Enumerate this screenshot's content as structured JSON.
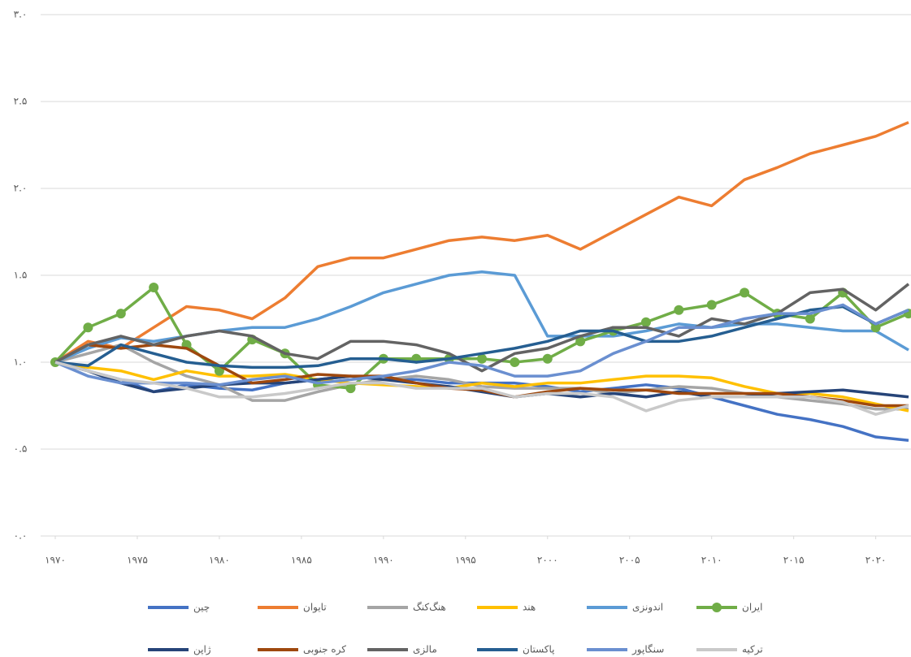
{
  "chart_data": {
    "type": "line",
    "x": [
      1970,
      1972,
      1974,
      1976,
      1978,
      1980,
      1982,
      1984,
      1986,
      1988,
      1990,
      1992,
      1994,
      1996,
      1998,
      2000,
      2002,
      2004,
      2006,
      2008,
      2010,
      2012,
      2014,
      2016,
      2018,
      2020,
      2022
    ],
    "xlim": [
      1970,
      2022
    ],
    "ylim": [
      0,
      3
    ],
    "xticks": [
      {
        "value": 1970,
        "label": "۱۹۷۰"
      },
      {
        "value": 1975,
        "label": "۱۹۷۵"
      },
      {
        "value": 1980,
        "label": "۱۹۸۰"
      },
      {
        "value": 1985,
        "label": "۱۹۸۵"
      },
      {
        "value": 1990,
        "label": "۱۹۹۰"
      },
      {
        "value": 1995,
        "label": "۱۹۹۵"
      },
      {
        "value": 2000,
        "label": "۲۰۰۰"
      },
      {
        "value": 2005,
        "label": "۲۰۰۵"
      },
      {
        "value": 2010,
        "label": "۲۰۱۰"
      },
      {
        "value": 2015,
        "label": "۲۰۱۵"
      },
      {
        "value": 2020,
        "label": "۲۰۲۰"
      }
    ],
    "yticks": [
      {
        "value": 0,
        "label": "۰.۰"
      },
      {
        "value": 0.5,
        "label": "۰.۵"
      },
      {
        "value": 1,
        "label": "۱.۰"
      },
      {
        "value": 1.5,
        "label": "۱.۵"
      },
      {
        "value": 2,
        "label": "۲.۰"
      },
      {
        "value": 2.5,
        "label": "۲.۵"
      },
      {
        "value": 3,
        "label": "۳.۰"
      }
    ],
    "grid": true,
    "legend": "bottom",
    "series": [
      {
        "name": "چین",
        "color": "#4472c4",
        "values": [
          1.0,
          0.95,
          0.9,
          0.83,
          0.87,
          0.85,
          0.84,
          0.88,
          0.9,
          0.92,
          0.9,
          0.9,
          0.88,
          0.88,
          0.88,
          0.86,
          0.83,
          0.85,
          0.87,
          0.85,
          0.8,
          0.75,
          0.7,
          0.67,
          0.63,
          0.57,
          0.55
        ]
      },
      {
        "name": "تایوان",
        "color": "#ed7d31",
        "values": [
          1.0,
          1.12,
          1.08,
          1.2,
          1.32,
          1.3,
          1.25,
          1.37,
          1.55,
          1.6,
          1.6,
          1.65,
          1.7,
          1.72,
          1.7,
          1.73,
          1.65,
          1.75,
          1.85,
          1.95,
          1.9,
          2.05,
          2.12,
          2.2,
          2.25,
          2.3,
          2.38
        ]
      },
      {
        "name": "هنگ‌کنگ",
        "color": "#a5a5a5",
        "values": [
          1.0,
          1.05,
          1.1,
          1.0,
          0.92,
          0.87,
          0.78,
          0.78,
          0.83,
          0.87,
          0.9,
          0.92,
          0.9,
          0.86,
          0.85,
          0.85,
          0.85,
          0.82,
          0.84,
          0.86,
          0.85,
          0.82,
          0.8,
          0.78,
          0.76,
          0.73,
          0.73
        ]
      },
      {
        "name": "هند",
        "color": "#ffc000",
        "values": [
          1.0,
          0.97,
          0.95,
          0.9,
          0.95,
          0.92,
          0.92,
          0.93,
          0.9,
          0.88,
          0.87,
          0.86,
          0.85,
          0.88,
          0.86,
          0.88,
          0.88,
          0.9,
          0.92,
          0.92,
          0.91,
          0.86,
          0.82,
          0.82,
          0.8,
          0.76,
          0.72
        ]
      },
      {
        "name": "اندونزی",
        "color": "#5b9bd5",
        "values": [
          1.0,
          1.08,
          1.14,
          1.12,
          1.15,
          1.18,
          1.2,
          1.2,
          1.25,
          1.32,
          1.4,
          1.45,
          1.5,
          1.52,
          1.5,
          1.15,
          1.15,
          1.15,
          1.18,
          1.22,
          1.2,
          1.22,
          1.22,
          1.2,
          1.18,
          1.18,
          1.07
        ]
      },
      {
        "name": "ایران",
        "color": "#70ad47",
        "marker": "circle",
        "values": [
          1.0,
          1.2,
          1.28,
          1.43,
          1.1,
          0.95,
          1.13,
          1.05,
          0.87,
          0.85,
          1.02,
          1.02,
          1.02,
          1.02,
          1.0,
          1.02,
          1.12,
          1.18,
          1.23,
          1.3,
          1.33,
          1.4,
          1.28,
          1.25,
          1.4,
          1.2,
          1.28
        ]
      },
      {
        "name": "ژاپن",
        "color": "#264478",
        "values": [
          1.0,
          0.95,
          0.88,
          0.83,
          0.85,
          0.87,
          0.88,
          0.88,
          0.9,
          0.92,
          0.9,
          0.88,
          0.86,
          0.83,
          0.8,
          0.82,
          0.8,
          0.82,
          0.8,
          0.83,
          0.8,
          0.8,
          0.82,
          0.83,
          0.84,
          0.82,
          0.8
        ]
      },
      {
        "name": "کره جنوبی",
        "color": "#9e480e",
        "values": [
          1.0,
          1.1,
          1.08,
          1.1,
          1.08,
          0.98,
          0.88,
          0.9,
          0.93,
          0.92,
          0.92,
          0.88,
          0.85,
          0.84,
          0.8,
          0.83,
          0.85,
          0.84,
          0.84,
          0.82,
          0.82,
          0.82,
          0.82,
          0.8,
          0.78,
          0.75,
          0.75
        ]
      },
      {
        "name": "مالزی",
        "color": "#636363",
        "values": [
          1.0,
          1.1,
          1.15,
          1.1,
          1.15,
          1.18,
          1.15,
          1.05,
          1.02,
          1.12,
          1.12,
          1.1,
          1.05,
          0.95,
          1.05,
          1.08,
          1.15,
          1.2,
          1.2,
          1.15,
          1.25,
          1.22,
          1.28,
          1.4,
          1.42,
          1.3,
          1.45
        ]
      },
      {
        "name": "پاکستان",
        "color": "#255e91",
        "values": [
          1.0,
          0.98,
          1.1,
          1.05,
          1.0,
          0.98,
          0.97,
          0.97,
          0.98,
          1.02,
          1.02,
          1.0,
          1.02,
          1.05,
          1.08,
          1.12,
          1.18,
          1.18,
          1.12,
          1.12,
          1.15,
          1.2,
          1.25,
          1.3,
          1.32,
          1.22,
          1.3
        ]
      },
      {
        "name": "سنگاپور",
        "color": "#6a8fd0",
        "values": [
          1.0,
          0.92,
          0.88,
          0.88,
          0.88,
          0.87,
          0.9,
          0.92,
          0.88,
          0.9,
          0.92,
          0.95,
          1.0,
          0.98,
          0.92,
          0.92,
          0.95,
          1.05,
          1.12,
          1.2,
          1.2,
          1.25,
          1.28,
          1.28,
          1.33,
          1.22,
          1.3
        ]
      },
      {
        "name": "ترکیه",
        "color": "#c9c9c9",
        "values": [
          1.0,
          0.95,
          0.9,
          0.88,
          0.85,
          0.8,
          0.8,
          0.82,
          0.85,
          0.88,
          0.88,
          0.85,
          0.85,
          0.85,
          0.8,
          0.82,
          0.82,
          0.8,
          0.72,
          0.78,
          0.8,
          0.8,
          0.8,
          0.8,
          0.77,
          0.7,
          0.75
        ]
      }
    ]
  }
}
